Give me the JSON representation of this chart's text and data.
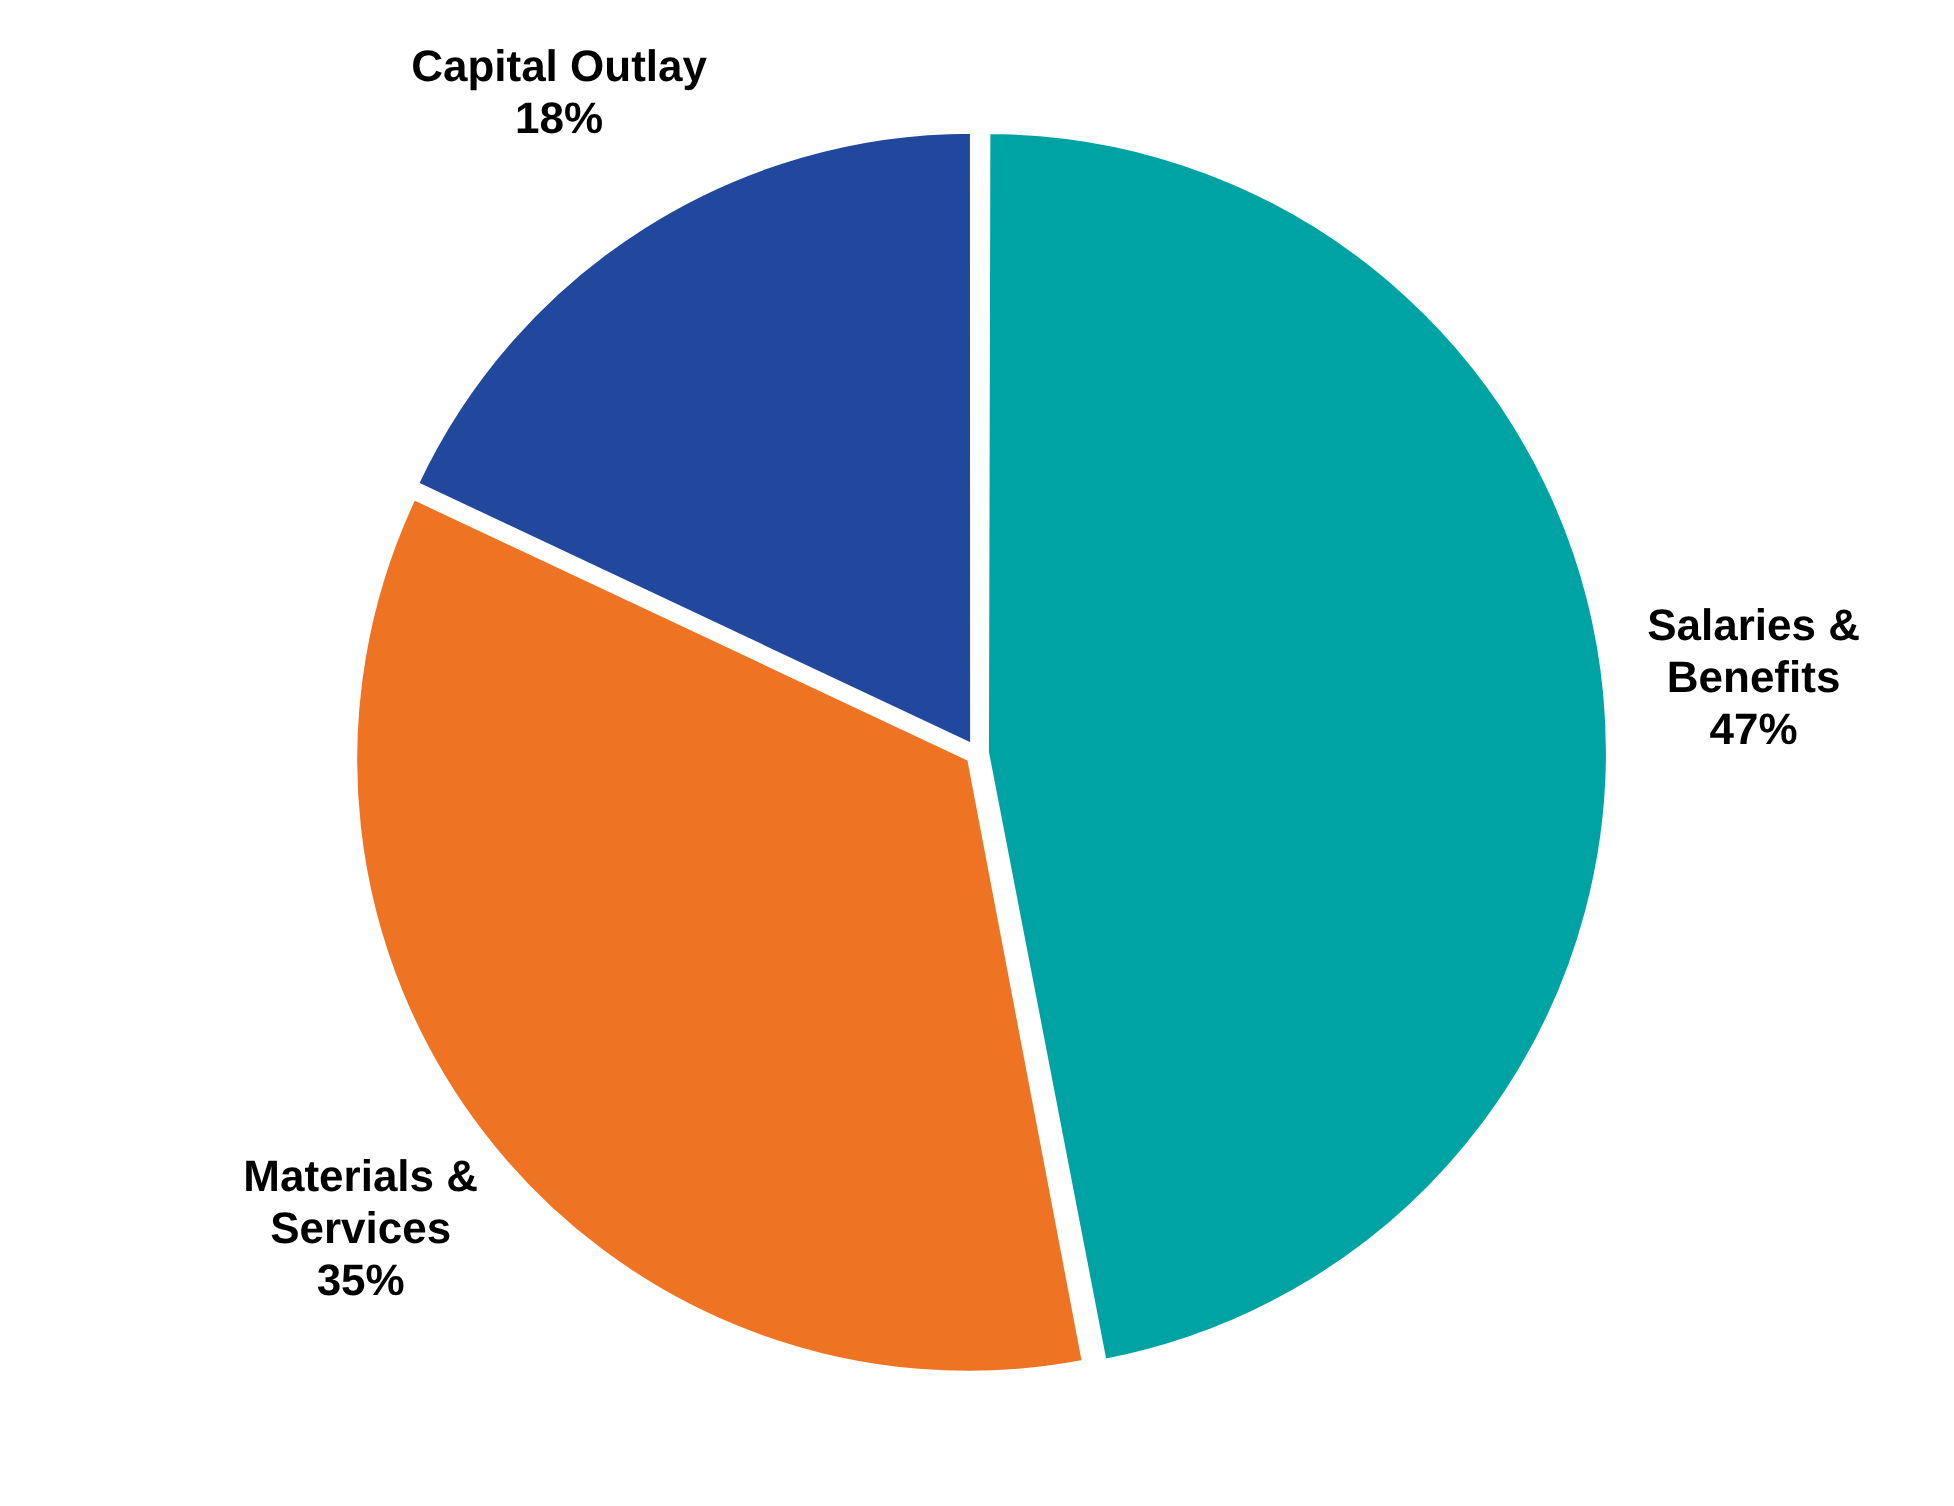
{
  "chart_data": {
    "type": "pie",
    "categories": [
      "Salaries & Benefits",
      "Materials & Services",
      "Capital Outlay"
    ],
    "values": [
      47,
      35,
      18
    ],
    "colors": [
      "#00a3a3",
      "#ee7423",
      "#21489c"
    ],
    "value_labels": [
      "47%",
      "35%",
      "18%"
    ],
    "legend": false
  }
}
